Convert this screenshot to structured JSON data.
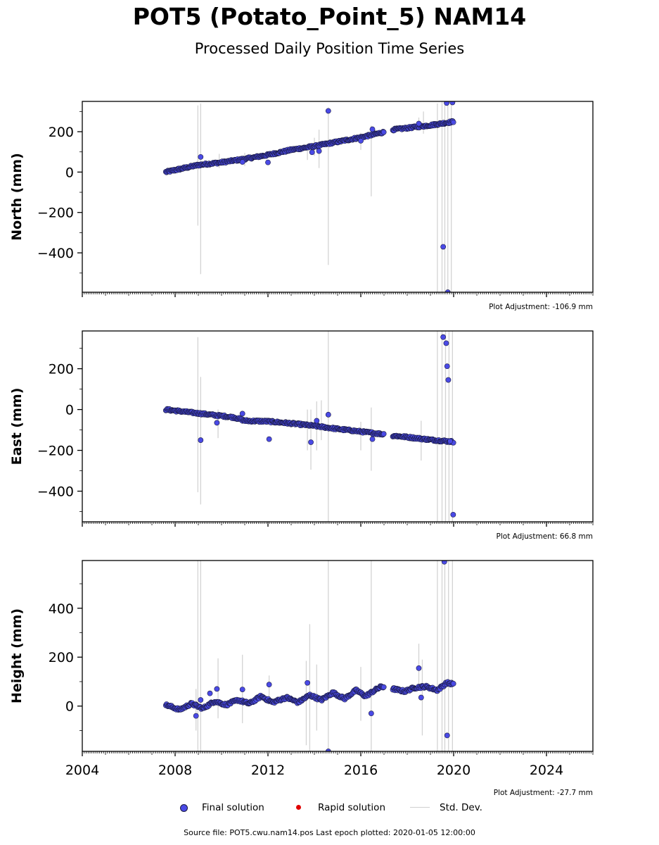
{
  "title": "POT5 (Potato_Point_5) NAM14",
  "subtitle": "Processed Daily Position Time Series",
  "footer": "Source file: POT5.cwu.nam14.pos  Last epoch plotted: 2020-01-05 12:00:00",
  "legend": {
    "final": "Final solution",
    "rapid": "Rapid solution",
    "stddev": "Std. Dev."
  },
  "colors": {
    "final": "#4a4ae6",
    "rapid": "#e00000",
    "stddev": "#d3d3d3",
    "marker_edge": "#1a1a40"
  },
  "chart_data": [
    {
      "type": "scatter",
      "ylabel": "North (mm)",
      "adjustment": "Plot Adjustment: -106.9 mm",
      "xlim": [
        2004,
        2026
      ],
      "ylim": [
        -595,
        350
      ],
      "yticks": [
        200,
        0,
        -200,
        -400
      ],
      "yticklabels": [
        "200",
        "0",
        "−200",
        "−400"
      ],
      "trend": [
        [
          2007.6,
          0
        ],
        [
          2009.0,
          35
        ],
        [
          2010.0,
          48
        ],
        [
          2011.0,
          65
        ],
        [
          2012.0,
          85
        ],
        [
          2013.0,
          110
        ],
        [
          2014.0,
          128
        ],
        [
          2015.0,
          150
        ],
        [
          2016.0,
          172
        ],
        [
          2016.9,
          195
        ],
        [
          2017.4,
          210
        ],
        [
          2018.0,
          218
        ],
        [
          2019.0,
          232
        ],
        [
          2020.0,
          250
        ]
      ],
      "outliers": [
        [
          2009.1,
          75
        ],
        [
          2010.9,
          50
        ],
        [
          2012.0,
          48
        ],
        [
          2013.9,
          98
        ],
        [
          2014.2,
          104
        ],
        [
          2014.6,
          303
        ],
        [
          2016.0,
          155
        ],
        [
          2016.5,
          212
        ],
        [
          2018.5,
          240
        ],
        [
          2019.55,
          -370
        ],
        [
          2019.7,
          342
        ],
        [
          2019.75,
          -595
        ],
        [
          2019.95,
          345
        ]
      ],
      "errorbars": [
        [
          2008.98,
          -265,
          330
        ],
        [
          2009.1,
          -505,
          340
        ],
        [
          2009.9,
          20,
          90
        ],
        [
          2011.0,
          30,
          95
        ],
        [
          2013.7,
          60,
          140
        ],
        [
          2014.0,
          80,
          170
        ],
        [
          2014.2,
          20,
          210
        ],
        [
          2014.6,
          -460,
          320
        ],
        [
          2016.0,
          110,
          195
        ],
        [
          2016.45,
          -120,
          230
        ],
        [
          2018.5,
          210,
          270
        ],
        [
          2018.7,
          190,
          300
        ],
        [
          2019.3,
          -595,
          340
        ],
        [
          2019.5,
          -595,
          350
        ],
        [
          2019.62,
          -595,
          350
        ],
        [
          2019.75,
          -595,
          350
        ],
        [
          2019.9,
          -595,
          350
        ]
      ]
    },
    {
      "type": "scatter",
      "ylabel": "East (mm)",
      "adjustment": "Plot Adjustment: 66.8 mm",
      "xlim": [
        2004,
        2026
      ],
      "ylim": [
        -550,
        385
      ],
      "yticks": [
        200,
        0,
        -200,
        -400
      ],
      "yticklabels": [
        "200",
        "0",
        "−200",
        "−400"
      ],
      "trend": [
        [
          2007.6,
          0
        ],
        [
          2008.5,
          -12
        ],
        [
          2009.5,
          -25
        ],
        [
          2010.3,
          -35
        ],
        [
          2010.6,
          -40
        ],
        [
          2011.0,
          -55
        ],
        [
          2012.0,
          -58
        ],
        [
          2013.0,
          -68
        ],
        [
          2014.0,
          -80
        ],
        [
          2015.0,
          -95
        ],
        [
          2016.0,
          -108
        ],
        [
          2016.9,
          -120
        ],
        [
          2017.4,
          -128
        ],
        [
          2018.0,
          -135
        ],
        [
          2019.0,
          -148
        ],
        [
          2020.0,
          -158
        ]
      ],
      "outliers": [
        [
          2009.1,
          -150
        ],
        [
          2009.8,
          -65
        ],
        [
          2010.9,
          -20
        ],
        [
          2012.05,
          -145
        ],
        [
          2013.85,
          -160
        ],
        [
          2014.1,
          -55
        ],
        [
          2014.6,
          -25
        ],
        [
          2016.5,
          -145
        ],
        [
          2019.55,
          355
        ],
        [
          2019.68,
          325
        ],
        [
          2019.72,
          212
        ],
        [
          2019.77,
          145
        ],
        [
          2019.85,
          -155
        ],
        [
          2019.98,
          -515
        ]
      ],
      "errorbars": [
        [
          2008.98,
          -405,
          355
        ],
        [
          2009.1,
          -465,
          160
        ],
        [
          2009.85,
          -140,
          0
        ],
        [
          2013.7,
          -200,
          0
        ],
        [
          2013.85,
          -295,
          0
        ],
        [
          2014.1,
          -200,
          40
        ],
        [
          2014.3,
          -150,
          45
        ],
        [
          2014.6,
          -550,
          385
        ],
        [
          2016.0,
          -200,
          -60
        ],
        [
          2016.45,
          -300,
          10
        ],
        [
          2018.6,
          -250,
          -55
        ],
        [
          2019.3,
          -550,
          385
        ],
        [
          2019.5,
          -550,
          385
        ],
        [
          2019.65,
          -550,
          385
        ],
        [
          2019.8,
          -550,
          385
        ],
        [
          2019.95,
          -550,
          385
        ]
      ]
    },
    {
      "type": "scatter",
      "ylabel": "Height (mm)",
      "adjustment": "Plot Adjustment: -27.7 mm",
      "xlim": [
        2004,
        2026
      ],
      "ylim": [
        -185,
        595
      ],
      "yticks": [
        400,
        200,
        0
      ],
      "yticklabels": [
        "400",
        "200",
        "0"
      ],
      "xticks": [
        2004,
        2008,
        2012,
        2016,
        2020,
        2024
      ],
      "xticklabels": [
        "2004",
        "2008",
        "2012",
        "2016",
        "2020",
        "2024"
      ],
      "trend": [
        [
          2007.6,
          5
        ],
        [
          2008.2,
          -15
        ],
        [
          2008.7,
          10
        ],
        [
          2009.2,
          -10
        ],
        [
          2009.7,
          20
        ],
        [
          2010.2,
          5
        ],
        [
          2010.7,
          25
        ],
        [
          2011.2,
          10
        ],
        [
          2011.7,
          40
        ],
        [
          2012.2,
          15
        ],
        [
          2012.8,
          35
        ],
        [
          2013.3,
          15
        ],
        [
          2013.8,
          45
        ],
        [
          2014.3,
          25
        ],
        [
          2014.8,
          55
        ],
        [
          2015.3,
          30
        ],
        [
          2015.8,
          65
        ],
        [
          2016.2,
          40
        ],
        [
          2016.6,
          65
        ],
        [
          2016.9,
          80
        ],
        [
          2017.4,
          70
        ],
        [
          2017.9,
          60
        ],
        [
          2018.3,
          75
        ],
        [
          2018.8,
          80
        ],
        [
          2019.3,
          65
        ],
        [
          2019.7,
          95
        ],
        [
          2020.0,
          90
        ]
      ],
      "outliers": [
        [
          2008.9,
          -40
        ],
        [
          2009.1,
          25
        ],
        [
          2009.5,
          52
        ],
        [
          2009.8,
          70
        ],
        [
          2010.9,
          68
        ],
        [
          2012.05,
          88
        ],
        [
          2013.7,
          95
        ],
        [
          2014.6,
          -185
        ],
        [
          2016.45,
          -30
        ],
        [
          2018.5,
          155
        ],
        [
          2018.6,
          35
        ],
        [
          2019.6,
          590
        ],
        [
          2019.72,
          -120
        ]
      ],
      "errorbars": [
        [
          2008.9,
          -100,
          70
        ],
        [
          2008.98,
          -185,
          595
        ],
        [
          2009.1,
          -185,
          595
        ],
        [
          2009.85,
          -50,
          195
        ],
        [
          2010.9,
          -70,
          210
        ],
        [
          2012.05,
          40,
          125
        ],
        [
          2013.65,
          -160,
          185
        ],
        [
          2013.8,
          -185,
          335
        ],
        [
          2014.1,
          -100,
          170
        ],
        [
          2014.6,
          -185,
          595
        ],
        [
          2016.0,
          -60,
          160
        ],
        [
          2016.45,
          -185,
          595
        ],
        [
          2018.5,
          90,
          255
        ],
        [
          2018.65,
          -120,
          190
        ],
        [
          2019.3,
          -185,
          595
        ],
        [
          2019.5,
          -185,
          595
        ],
        [
          2019.62,
          -185,
          595
        ],
        [
          2019.78,
          -185,
          595
        ],
        [
          2019.95,
          -185,
          595
        ]
      ]
    }
  ]
}
